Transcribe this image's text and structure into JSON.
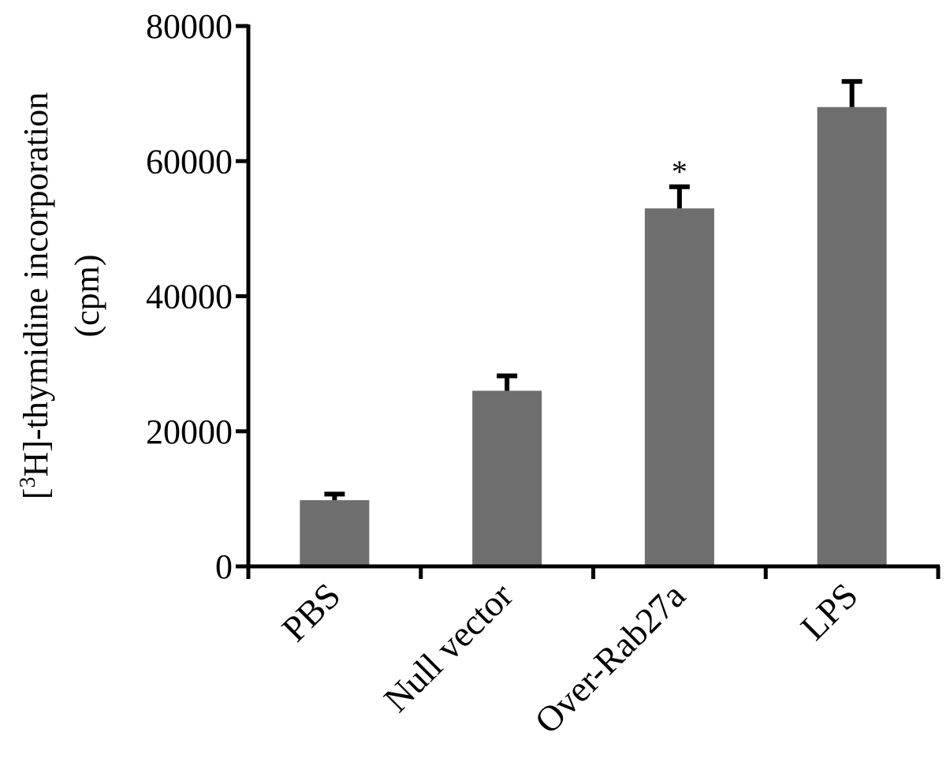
{
  "chart_data": {
    "type": "bar",
    "categories": [
      "PBS",
      "Null vector",
      "Over-Rab27a",
      "LPS"
    ],
    "values": [
      9800,
      26000,
      53000,
      68000
    ],
    "errors": [
      900,
      2200,
      3200,
      3800
    ],
    "annotations": [
      "",
      "",
      "*",
      ""
    ],
    "ylabel_prefix": "[",
    "ylabel_sup": "3",
    "ylabel_main": "H]-thymidine incorporation",
    "ylabel_unit": "(cpm)",
    "ylim": [
      0,
      80000
    ],
    "yticks": [
      0,
      20000,
      40000,
      60000,
      80000
    ],
    "ytick_labels": [
      "0",
      "20000",
      "40000",
      "60000",
      "80000"
    ],
    "bar_color": "#6e6e6e",
    "axis_color": "#000000",
    "grid": false
  }
}
